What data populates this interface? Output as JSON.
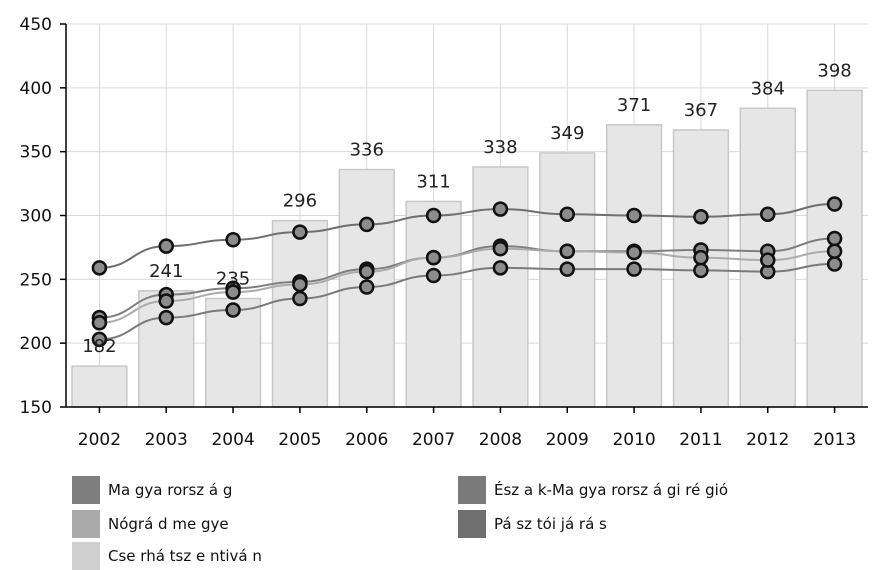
{
  "chart_data": {
    "type": "bar",
    "categories": [
      "2002",
      "2003",
      "2004",
      "2005",
      "2006",
      "2007",
      "2008",
      "2009",
      "2010",
      "2011",
      "2012",
      "2013"
    ],
    "bar_values": [
      182,
      241,
      235,
      296,
      336,
      311,
      338,
      349,
      371,
      367,
      384,
      398
    ],
    "bar_labels": [
      "182",
      "241",
      "235",
      "296",
      "336",
      "311",
      "338",
      "349",
      "371",
      "367",
      "384",
      "398"
    ],
    "ylim": [
      150,
      450
    ],
    "y_ticks": [
      150,
      200,
      250,
      300,
      350,
      400,
      450
    ],
    "series": [
      {
        "name": "Ma gya rorsz á g",
        "values": [
          220,
          238,
          243,
          248,
          258,
          267,
          276,
          272,
          272,
          273,
          272,
          282
        ],
        "color": "#7f7f7f"
      },
      {
        "name": "Ész a k-Ma gya rorsz á gi ré gió",
        "values": [
          203,
          220,
          226,
          235,
          244,
          253,
          259,
          258,
          258,
          257,
          256,
          262
        ],
        "color": "#7a7a7a"
      },
      {
        "name": "Nógrá d me gye",
        "values": [
          216,
          233,
          240,
          246,
          256,
          267,
          274,
          272,
          271,
          267,
          265,
          272
        ],
        "color": "#ababab"
      },
      {
        "name": "Pá sz tói já rá s",
        "values": [
          259,
          276,
          281,
          287,
          293,
          300,
          305,
          301,
          300,
          299,
          301,
          309
        ],
        "color": "#6f6f6f"
      },
      {
        "name": "Cse rhá tsz e ntivá n",
        "values": [
          null,
          null,
          null,
          null,
          null,
          null,
          null,
          null,
          null,
          null,
          null,
          null
        ],
        "color": "#cfcfcf"
      }
    ],
    "grid": true,
    "legend_position": "bottom"
  },
  "colors": {
    "bar_fill": "#e6e6e6",
    "bar_stroke": "#c8c8c8",
    "grid": "#d9d9d9",
    "marker_fill": "#8c8c8c",
    "marker_stroke": "#111111"
  }
}
